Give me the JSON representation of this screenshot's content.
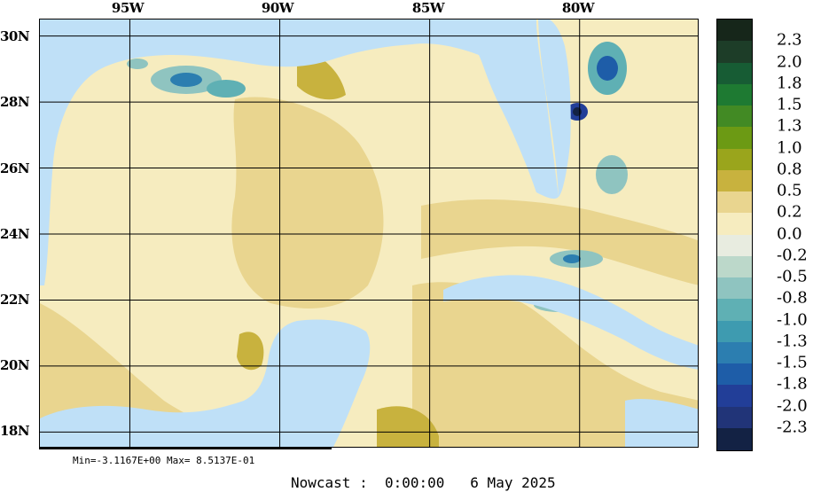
{
  "map": {
    "lon_labels": [
      "95W",
      "90W",
      "85W",
      "80W"
    ],
    "lat_labels": [
      "30N",
      "28N",
      "26N",
      "24N",
      "22N",
      "20N",
      "18N"
    ],
    "extent": {
      "lon": [
        -98,
        -76
      ],
      "lat": [
        17.5,
        30.5
      ]
    }
  },
  "colorbar": {
    "labels": [
      "2.3",
      "2.0",
      "1.8",
      "1.5",
      "1.3",
      "1.0",
      "0.8",
      "0.5",
      "0.2",
      "0.0",
      "-0.2",
      "-0.5",
      "-0.8",
      "-1.0",
      "-1.3",
      "-1.5",
      "-1.8",
      "-2.0",
      "-2.3"
    ],
    "colors": [
      "#16261a",
      "#1d3d28",
      "#175c34",
      "#1e7a32",
      "#428a24",
      "#6c9a14",
      "#9aa51c",
      "#c8b23e",
      "#e9d58f",
      "#f6ecbf",
      "#e8ece0",
      "#bcd8ca",
      "#8fc4c0",
      "#5fb0b4",
      "#3e9bb0",
      "#2c7eb0",
      "#1e5da8",
      "#223e98",
      "#213478",
      "#132244"
    ]
  },
  "stats": {
    "text": "Min=-3.1167E+00  Max= 8.5137E-01"
  },
  "footer": {
    "text": "Nowcast :  0:00:00   6 May 2025"
  }
}
